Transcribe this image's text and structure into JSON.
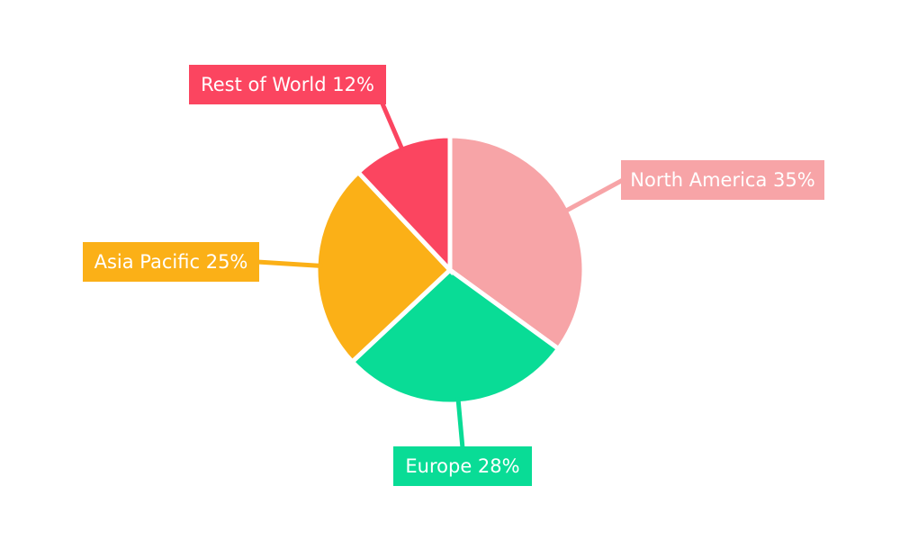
{
  "chart_data": {
    "type": "pie",
    "title": "",
    "unit": "%",
    "direction": "clockwise",
    "start_angle_deg": 0,
    "legend_position": "callout-labels",
    "background_color": "#ffffff",
    "separator_color": "#ffffff",
    "label_text_color": "#ffffff",
    "slices": [
      {
        "label": "North America",
        "value": 35,
        "display": "North America 35%",
        "color": "#f7a4a7"
      },
      {
        "label": "Europe",
        "value": 28,
        "display": "Europe 28%",
        "color": "#09dc96"
      },
      {
        "label": "Asia Pacific",
        "value": 25,
        "display": "Asia Pacific 25%",
        "color": "#fbb017"
      },
      {
        "label": "Rest of World",
        "value": 12,
        "display": "Rest of World 12%",
        "color": "#fb4560"
      }
    ]
  }
}
